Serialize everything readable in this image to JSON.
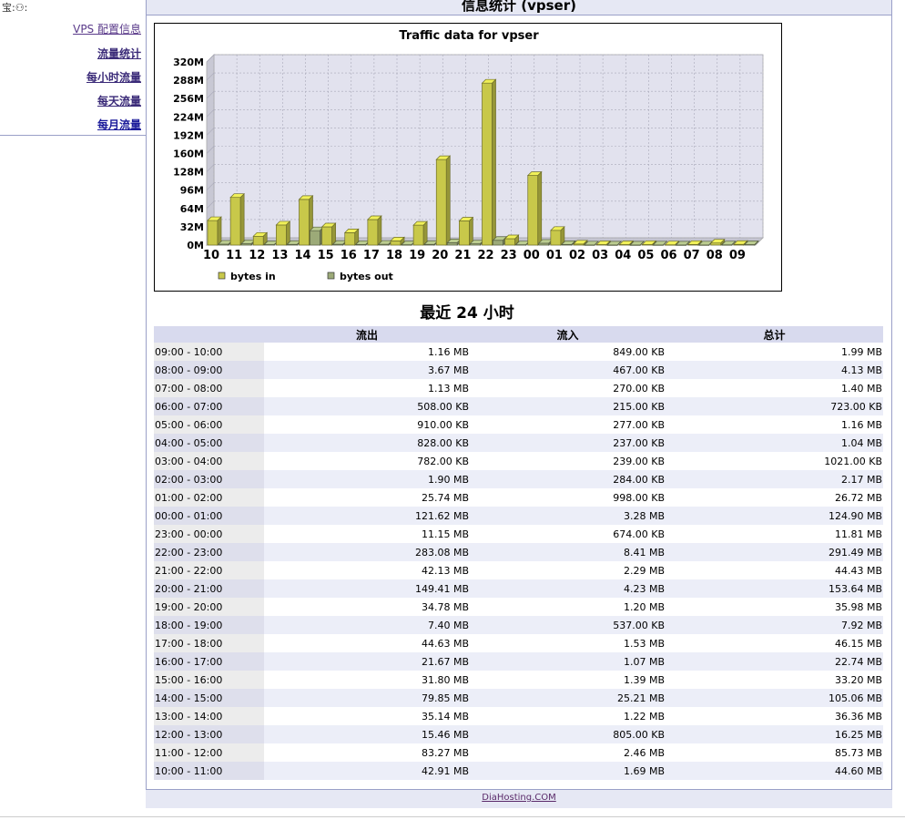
{
  "logo_text": "宝:⚇:",
  "page_title": "信息统计 (vpser)",
  "sidebar": {
    "items": [
      {
        "label": "VPS 配置信息"
      },
      {
        "label": "流量统计"
      },
      {
        "label": "每小时流量"
      },
      {
        "label": "每天流量"
      },
      {
        "label": "每月流量"
      }
    ]
  },
  "chart_data": {
    "type": "bar",
    "title": "Traffic data for vpser",
    "categories": [
      "10",
      "11",
      "12",
      "13",
      "14",
      "15",
      "16",
      "17",
      "18",
      "19",
      "20",
      "21",
      "22",
      "23",
      "00",
      "01",
      "02",
      "03",
      "04",
      "05",
      "06",
      "07",
      "08",
      "09"
    ],
    "y_ticks": [
      "0M",
      "32M",
      "64M",
      "96M",
      "128M",
      "160M",
      "192M",
      "224M",
      "256M",
      "288M",
      "320M"
    ],
    "ylim": [
      0,
      320
    ],
    "grid": true,
    "legend_position": "bottom-left",
    "series": [
      {
        "name": "bytes in",
        "color": "#c8c84a",
        "values": [
          42.91,
          83.27,
          15.46,
          35.14,
          79.85,
          31.8,
          21.67,
          44.63,
          7.4,
          34.78,
          149.41,
          42.13,
          283.08,
          11.15,
          121.62,
          25.74,
          1.9,
          0.78,
          0.83,
          0.91,
          0.5,
          1.13,
          3.67,
          1.16
        ]
      },
      {
        "name": "bytes out",
        "color": "#9caa78",
        "values": [
          1.69,
          2.46,
          0.8,
          1.22,
          25.21,
          1.39,
          1.07,
          1.53,
          0.54,
          1.2,
          4.23,
          2.29,
          8.41,
          0.67,
          3.28,
          1.0,
          0.28,
          0.24,
          0.24,
          0.28,
          0.22,
          0.27,
          0.47,
          0.85
        ]
      }
    ]
  },
  "table": {
    "title": "最近  24 小时",
    "headers": [
      "",
      "流出",
      "流入",
      "总计"
    ],
    "rows": [
      [
        "09:00 - 10:00",
        "1.16 MB",
        "849.00 KB",
        "1.99 MB"
      ],
      [
        "08:00 - 09:00",
        "3.67 MB",
        "467.00 KB",
        "4.13 MB"
      ],
      [
        "07:00 - 08:00",
        "1.13 MB",
        "270.00 KB",
        "1.40 MB"
      ],
      [
        "06:00 - 07:00",
        "508.00 KB",
        "215.00 KB",
        "723.00 KB"
      ],
      [
        "05:00 - 06:00",
        "910.00 KB",
        "277.00 KB",
        "1.16 MB"
      ],
      [
        "04:00 - 05:00",
        "828.00 KB",
        "237.00 KB",
        "1.04 MB"
      ],
      [
        "03:00 - 04:00",
        "782.00 KB",
        "239.00 KB",
        "1021.00 KB"
      ],
      [
        "02:00 - 03:00",
        "1.90 MB",
        "284.00 KB",
        "2.17 MB"
      ],
      [
        "01:00 - 02:00",
        "25.74 MB",
        "998.00 KB",
        "26.72 MB"
      ],
      [
        "00:00 - 01:00",
        "121.62 MB",
        "3.28 MB",
        "124.90 MB"
      ],
      [
        "23:00 - 00:00",
        "11.15 MB",
        "674.00 KB",
        "11.81 MB"
      ],
      [
        "22:00 - 23:00",
        "283.08 MB",
        "8.41 MB",
        "291.49 MB"
      ],
      [
        "21:00 - 22:00",
        "42.13 MB",
        "2.29 MB",
        "44.43 MB"
      ],
      [
        "20:00 - 21:00",
        "149.41 MB",
        "4.23 MB",
        "153.64 MB"
      ],
      [
        "19:00 - 20:00",
        "34.78 MB",
        "1.20 MB",
        "35.98 MB"
      ],
      [
        "18:00 - 19:00",
        "7.40 MB",
        "537.00 KB",
        "7.92 MB"
      ],
      [
        "17:00 - 18:00",
        "44.63 MB",
        "1.53 MB",
        "46.15 MB"
      ],
      [
        "16:00 - 17:00",
        "21.67 MB",
        "1.07 MB",
        "22.74 MB"
      ],
      [
        "15:00 - 16:00",
        "31.80 MB",
        "1.39 MB",
        "33.20 MB"
      ],
      [
        "14:00 - 15:00",
        "79.85 MB",
        "25.21 MB",
        "105.06 MB"
      ],
      [
        "13:00 - 14:00",
        "35.14 MB",
        "1.22 MB",
        "36.36 MB"
      ],
      [
        "12:00 - 13:00",
        "15.46 MB",
        "805.00 KB",
        "16.25 MB"
      ],
      [
        "11:00 - 12:00",
        "83.27 MB",
        "2.46 MB",
        "85.73 MB"
      ],
      [
        "10:00 - 11:00",
        "42.91 MB",
        "1.69 MB",
        "44.60 MB"
      ]
    ]
  },
  "footer": {
    "link_text": "DiaHosting.COM"
  }
}
